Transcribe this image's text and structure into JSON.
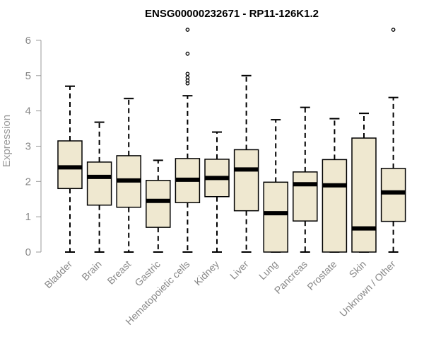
{
  "chart_data": {
    "type": "boxplot",
    "title": "ENSG00000232671 - RP11-126K1.2",
    "xlabel": "",
    "ylabel": "Expression",
    "ylim": [
      0,
      6.3
    ],
    "yticks": [
      0,
      1,
      2,
      3,
      4,
      5,
      6
    ],
    "box_fill": "#efe8d0",
    "stroke_color": "#000000",
    "categories": [
      "Bladder",
      "Brain",
      "Breast",
      "Gastric",
      "Hematopoietic cells",
      "Kidney",
      "Liver",
      "Lung",
      "Pancreas",
      "Prostate",
      "Skin",
      "Unknown / Other"
    ],
    "boxes": [
      {
        "min": 0,
        "q1": 1.8,
        "median": 2.4,
        "q3": 3.15,
        "max": 4.7,
        "outliers": []
      },
      {
        "min": 0,
        "q1": 1.33,
        "median": 2.13,
        "q3": 2.55,
        "max": 3.68,
        "outliers": []
      },
      {
        "min": 0,
        "q1": 1.27,
        "median": 2.03,
        "q3": 2.73,
        "max": 4.35,
        "outliers": []
      },
      {
        "min": 0,
        "q1": 0.7,
        "median": 1.45,
        "q3": 2.03,
        "max": 2.6,
        "outliers": []
      },
      {
        "min": 0,
        "q1": 1.4,
        "median": 2.05,
        "q3": 2.65,
        "max": 4.43,
        "outliers": [
          4.78,
          4.86,
          4.95,
          5.05,
          5.62,
          6.3
        ]
      },
      {
        "min": 0,
        "q1": 1.57,
        "median": 2.1,
        "q3": 2.63,
        "max": 3.4,
        "outliers": []
      },
      {
        "min": 0,
        "q1": 1.17,
        "median": 2.34,
        "q3": 2.9,
        "max": 5.0,
        "outliers": []
      },
      {
        "min": 0,
        "q1": 0,
        "median": 1.1,
        "q3": 1.98,
        "max": 3.75,
        "outliers": []
      },
      {
        "min": 0,
        "q1": 0.88,
        "median": 1.92,
        "q3": 2.27,
        "max": 4.1,
        "outliers": []
      },
      {
        "min": 0,
        "q1": 0,
        "median": 1.89,
        "q3": 2.62,
        "max": 3.78,
        "outliers": []
      },
      {
        "min": 0,
        "q1": 0,
        "median": 0.67,
        "q3": 3.23,
        "max": 3.93,
        "outliers": []
      },
      {
        "min": 0,
        "q1": 0.87,
        "median": 1.69,
        "q3": 2.37,
        "max": 4.38,
        "outliers": [
          6.3
        ]
      }
    ]
  }
}
